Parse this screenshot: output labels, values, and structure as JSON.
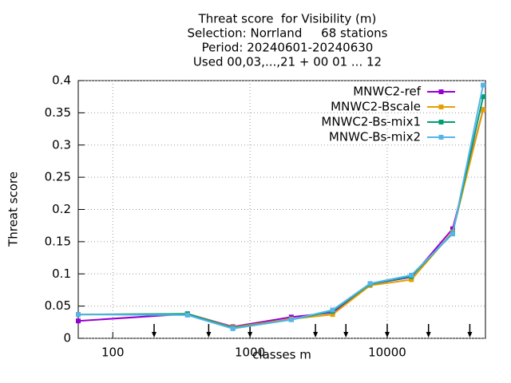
{
  "chart_data": {
    "type": "line",
    "title": [
      "Threat score  for Visibility (m)",
      "Selection: Norrland     68 stations",
      "Period: 20240601-20240630",
      "Used 00,03,...,21 + 00 01 ... 12"
    ],
    "x_label": "classes m",
    "y_label": "Threat score",
    "x": [
      56,
      350,
      750,
      2000,
      4000,
      7500,
      15000,
      30000,
      50000
    ],
    "series": [
      {
        "name": "MNWC2-ref",
        "color": "#9400d3",
        "values": [
          0.027,
          0.038,
          0.018,
          0.033,
          0.04,
          0.084,
          0.095,
          0.17,
          0.355
        ]
      },
      {
        "name": "MNWC2-Bscale",
        "color": "#e69f00",
        "values": [
          0.037,
          0.038,
          0.017,
          0.03,
          0.037,
          0.082,
          0.091,
          0.165,
          0.355
        ]
      },
      {
        "name": "MNWC2-Bs-mix1",
        "color": "#009e73",
        "values": [
          0.037,
          0.038,
          0.016,
          0.029,
          0.042,
          0.084,
          0.096,
          0.163,
          0.375
        ]
      },
      {
        "name": "MNWC-Bs-mix2",
        "color": "#56b4e9",
        "values": [
          0.037,
          0.036,
          0.015,
          0.029,
          0.044,
          0.085,
          0.098,
          0.162,
          0.393
        ]
      }
    ],
    "xlog": true,
    "xlim": [
      56,
      52000
    ],
    "xticks": [
      100,
      1000,
      10000
    ],
    "ylim": [
      0,
      0.4
    ],
    "yticks": [
      0,
      0.05,
      0.1,
      0.15,
      0.2,
      0.25,
      0.3,
      0.35,
      0.4
    ],
    "arrows_x": [
      200,
      500,
      1000,
      3000,
      5000,
      10000,
      20000,
      40000
    ],
    "grid": true,
    "legend": "top-right"
  }
}
